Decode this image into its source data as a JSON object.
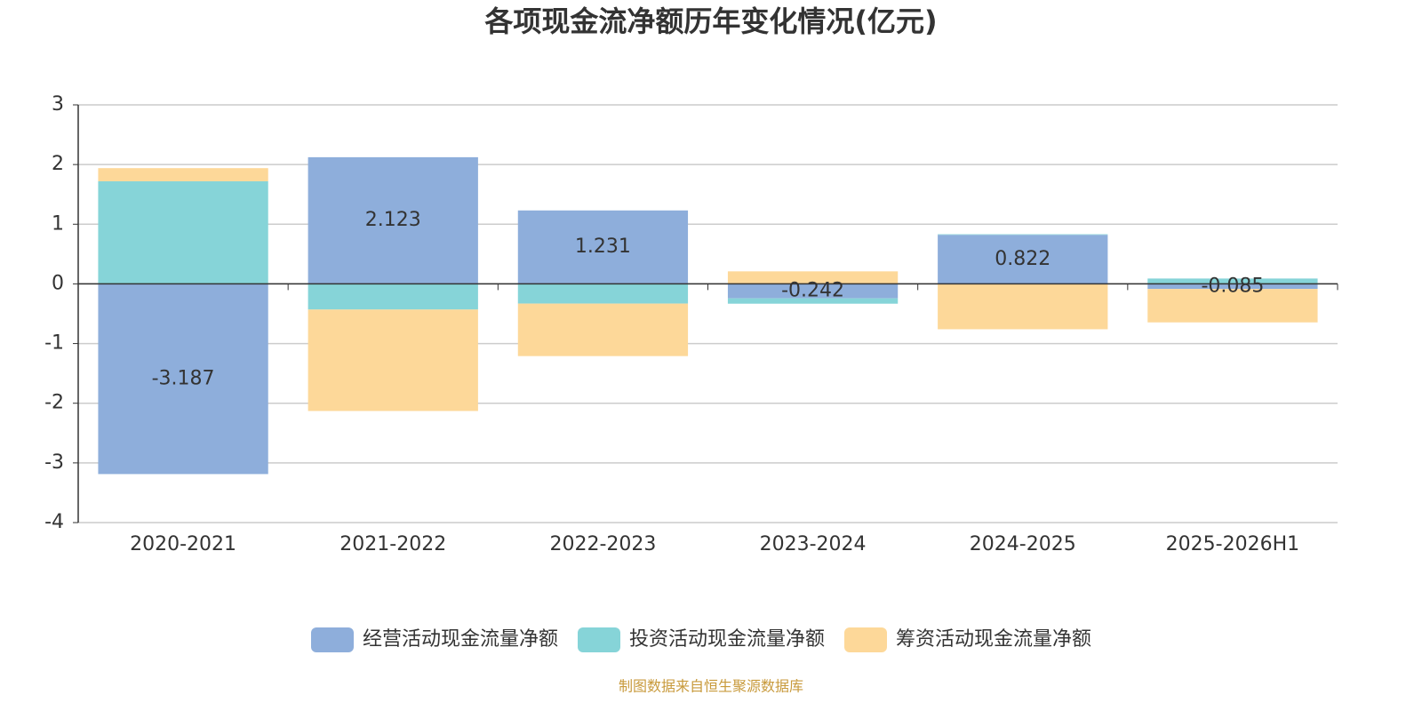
{
  "chart_data": {
    "type": "bar",
    "stacked": true,
    "title": "各项现金流净额历年变化情况(亿元)",
    "source": "制图数据来自恒生聚源数据库",
    "categories": [
      "2020-2021",
      "2021-2022",
      "2022-2023",
      "2023-2024",
      "2024-2025",
      "2025-2026H1"
    ],
    "series": [
      {
        "name": "经营活动现金流量净额",
        "color": "#8eaedb",
        "show_labels": true,
        "values": [
          -3.187,
          2.123,
          1.231,
          -0.242,
          0.822,
          -0.085
        ]
      },
      {
        "name": "投资活动现金流量净额",
        "color": "#86d4d8",
        "values": [
          1.72,
          -0.43,
          -0.33,
          -0.09,
          0.01,
          0.09
        ]
      },
      {
        "name": "筹资活动现金流量净额",
        "color": "#fdd899",
        "values": [
          0.22,
          -1.7,
          -0.88,
          0.21,
          -0.76,
          -0.56
        ]
      }
    ],
    "ylim": [
      -4,
      3
    ],
    "yticks": [
      -4,
      -3,
      -2,
      -1,
      0,
      1,
      2,
      3
    ],
    "grid": true,
    "legend": "bottom"
  }
}
